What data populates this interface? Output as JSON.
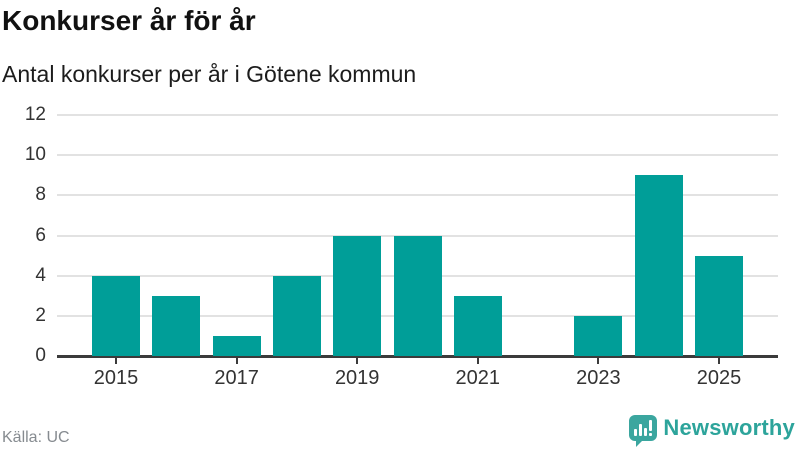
{
  "header": {
    "title": "Konkurser år för år",
    "subtitle": "Antal konkurser per år i Götene kommun"
  },
  "footer": {
    "source": "Källa: UC",
    "brand": "Newsworthy"
  },
  "colors": {
    "bar": "#009e98",
    "axis": "#3b3b3b",
    "grid": "#e2e2e2",
    "tick_label": "#333333",
    "title": "#111111",
    "source_text": "#868b90",
    "logo_icon": "#3ba69f",
    "logo_text": "#2da49b",
    "background": "#ffffff"
  },
  "chart_data": {
    "type": "bar",
    "title": "Konkurser år för år",
    "subtitle": "Antal konkurser per år i Götene kommun",
    "categories": [
      "2015",
      "2016",
      "2017",
      "2018",
      "2019",
      "2020",
      "2021",
      "2022",
      "2023",
      "2024",
      "2025"
    ],
    "values": [
      4,
      3,
      1,
      4,
      6,
      6,
      3,
      0,
      2,
      9,
      5
    ],
    "xlabel": "",
    "ylabel": "",
    "ylim": [
      0,
      12
    ],
    "yticks": [
      0,
      2,
      4,
      6,
      8,
      10,
      12
    ],
    "xticklabels": [
      "2015",
      "2017",
      "2019",
      "2021",
      "2023",
      "2025"
    ],
    "grid": true,
    "legend": false,
    "bar_color": "#009e98",
    "source": "Källa: UC"
  }
}
